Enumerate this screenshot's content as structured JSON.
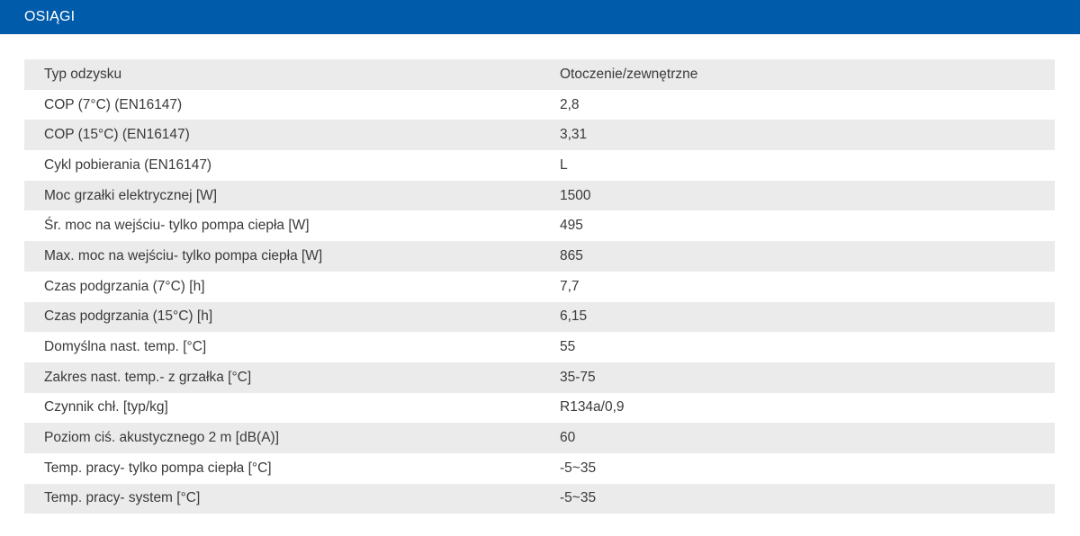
{
  "header": {
    "title": "OSIĄGI"
  },
  "table": {
    "rows": [
      {
        "label": "Typ odzysku",
        "value": "Otoczenie/zewnętrzne"
      },
      {
        "label": "COP (7°C) (EN16147)",
        "value": "2,8"
      },
      {
        "label": "COP (15°C) (EN16147)",
        "value": "3,31"
      },
      {
        "label": "Cykl pobierania (EN16147)",
        "value": "L"
      },
      {
        "label": "Moc grzałki elektrycznej [W]",
        "value": "1500"
      },
      {
        "label": "Śr. moc na wejściu- tylko pompa ciepła [W]",
        "value": "495"
      },
      {
        "label": "Max. moc na wejściu- tylko pompa ciepła [W]",
        "value": "865"
      },
      {
        "label": "Czas podgrzania (7°C) [h]",
        "value": "7,7"
      },
      {
        "label": "Czas podgrzania (15°C) [h]",
        "value": "6,15"
      },
      {
        "label": "Domyślna nast. temp. [°C]",
        "value": "55"
      },
      {
        "label": "Zakres nast. temp.- z grzałka [°C]",
        "value": "35-75"
      },
      {
        "label": "Czynnik chł. [typ/kg]",
        "value": "R134a/0,9"
      },
      {
        "label": "Poziom ciś. akustycznego 2 m [dB(A)]",
        "value": "60"
      },
      {
        "label": "Temp. pracy- tylko pompa ciepła [°C]",
        "value": "-5~35"
      },
      {
        "label": "Temp. pracy- system [°C]",
        "value": "-5~35"
      }
    ]
  },
  "colors": {
    "header_bg": "#005baa",
    "stripe": "#ebebeb"
  }
}
